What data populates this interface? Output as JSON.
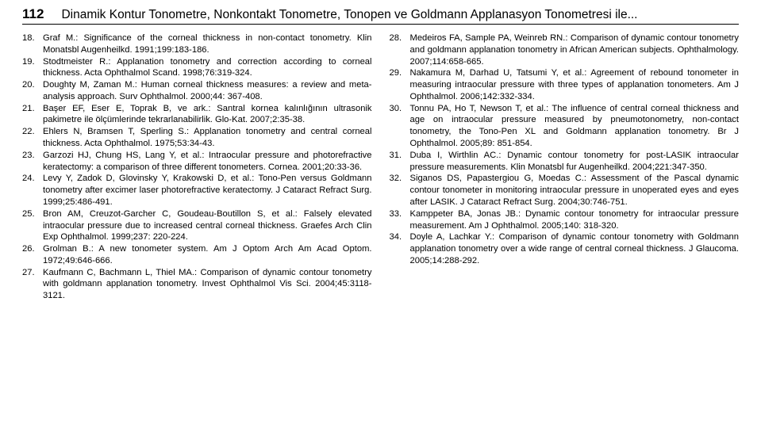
{
  "header": {
    "page_number": "112",
    "running_title": "Dinamik Kontur Tonometre, Nonkontakt Tonometre, Tonopen ve Goldmann Applanasyon Tonometresi ile..."
  },
  "left_refs": [
    {
      "n": "18.",
      "t": "Graf M.: Significance of the corneal thickness in non-contact tonometry. Klin Monatsbl Augenheilkd. 1991;199:183-186."
    },
    {
      "n": "19.",
      "t": "Stodtmeister R.: Applanation tonometry and correction according to corneal thickness. Acta Ophthalmol Scand. 1998;76:319-324."
    },
    {
      "n": "20.",
      "t": "Doughty M, Zaman M.: Human corneal thickness measures: a review and meta-analysis approach. Surv Ophthalmol. 2000;44: 367-408."
    },
    {
      "n": "21.",
      "t": "Başer EF, Eser E, Toprak B, ve ark.: Santral kornea kalınlığının ultrasonik pakimetre ile ölçümlerinde tekrarlanabilirlik. Glo-Kat. 2007;2:35-38."
    },
    {
      "n": "22.",
      "t": "Ehlers N, Bramsen T, Sperling S.: Applanation tonometry and central corneal thickness. Acta Ophthalmol. 1975;53:34-43."
    },
    {
      "n": "23.",
      "t": "Garzozi HJ, Chung HS, Lang Y, et al.: Intraocular pressure and photorefractive keratectomy: a comparison of three different tonometers. Cornea. 2001;20:33-36."
    },
    {
      "n": "24.",
      "t": "Levy Y, Zadok D, Glovinsky Y, Krakowski D, et al.: Tono-Pen versus Goldmann tonometry after excimer laser photorefractive keratectomy. J Cataract Refract Surg. 1999;25:486-491."
    },
    {
      "n": "25.",
      "t": "Bron AM, Creuzot-Garcher C, Goudeau-Boutillon S, et al.: Falsely elevated intraocular pressure due to increased central corneal thickness. Graefes Arch Clin Exp Ophthalmol. 1999;237: 220-224."
    },
    {
      "n": "26.",
      "t": "Grolman B.: A new tonometer system. Am J Optom Arch Am Acad Optom. 1972;49:646-666."
    },
    {
      "n": "27.",
      "t": "Kaufmann C, Bachmann L, Thiel MA.: Comparison of dynamic contour tonometry with goldmann applanation tonometry. Invest Ophthalmol Vis Sci. 2004;45:3118-3121."
    }
  ],
  "right_refs": [
    {
      "n": "28.",
      "t": "Medeiros FA, Sample PA, Weinreb RN.: Comparison of dynamic contour tonometry and goldmann applanation tonometry in African American subjects. Ophthalmology. 2007;114:658-665."
    },
    {
      "n": "29.",
      "t": "Nakamura M, Darhad U, Tatsumi Y, et al.: Agreement of rebound tonometer in measuring intraocular pressure with three types of applanation tonometers. Am J Ophthalmol. 2006;142:332-334."
    },
    {
      "n": "30.",
      "t": "Tonnu PA, Ho T, Newson T, et al.: The influence of central corneal thickness and age on intraocular pressure measured by pneumotonometry, non-contact tonometry, the Tono-Pen XL and Goldmann applanation tonometry. Br J Ophthalmol. 2005;89: 851-854."
    },
    {
      "n": "31.",
      "t": "Duba I, Wirthlin AC.: Dynamic contour tonometry for post-LASIK intraocular pressure measurements. Klin Monatsbl fur Augenheilkd. 2004;221:347-350."
    },
    {
      "n": "32.",
      "t": "Siganos DS, Papastergiou G, Moedas C.: Assessment of the Pascal dynamic contour tonometer in monitoring intraocular pressure in unoperated eyes and eyes after LASIK. J Cataract Refract Surg. 2004;30:746-751."
    },
    {
      "n": "33.",
      "t": "Kamppeter BA, Jonas JB.: Dynamic contour tonometry for intraocular pressure measurement. Am J Ophthalmol. 2005;140: 318-320."
    },
    {
      "n": "34.",
      "t": "Doyle A, Lachkar Y.: Comparison of dynamic contour tonometry with Goldmann applanation tonometry over a wide range of central corneal thickness. J Glaucoma. 2005;14:288-292."
    }
  ]
}
